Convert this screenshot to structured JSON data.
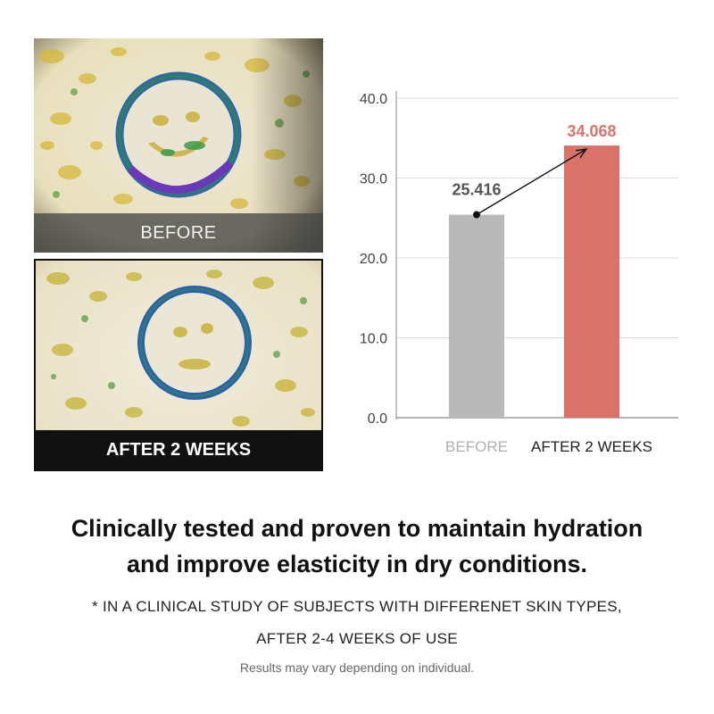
{
  "photos": {
    "before_caption": "BEFORE",
    "after_caption": "AFTER 2 WEEKS"
  },
  "chart_data": {
    "type": "bar",
    "categories": [
      "BEFORE",
      "AFTER 2 WEEKS"
    ],
    "values": [
      25.416,
      34.068
    ],
    "value_labels": [
      "25.416",
      "34.068"
    ],
    "ylim": [
      0,
      40
    ],
    "yticks": [
      "0.0",
      "10.0",
      "20.0",
      "30.0",
      "40.0"
    ],
    "ytick_values": [
      0,
      10,
      20,
      30,
      40
    ],
    "grid": true,
    "colors": {
      "before_bar": "#b9b9b9",
      "after_bar": "#d9736a",
      "before_label": "#555555",
      "after_label": "#d9736a",
      "before_category": "#b0b0b0",
      "after_category": "#222222"
    },
    "annotation": "arrow-from-before-to-after"
  },
  "text": {
    "headline_line1": "Clinically tested and proven to maintain hydration",
    "headline_line2": "and improve elasticity in dry conditions.",
    "note_line1": "* IN A CLINICAL STUDY OF SUBJECTS WITH DIFFERENET SKIN TYPES,",
    "note_line2": "AFTER 2-4 WEEKS OF USE",
    "disclaimer": "Results may vary depending on individual."
  }
}
